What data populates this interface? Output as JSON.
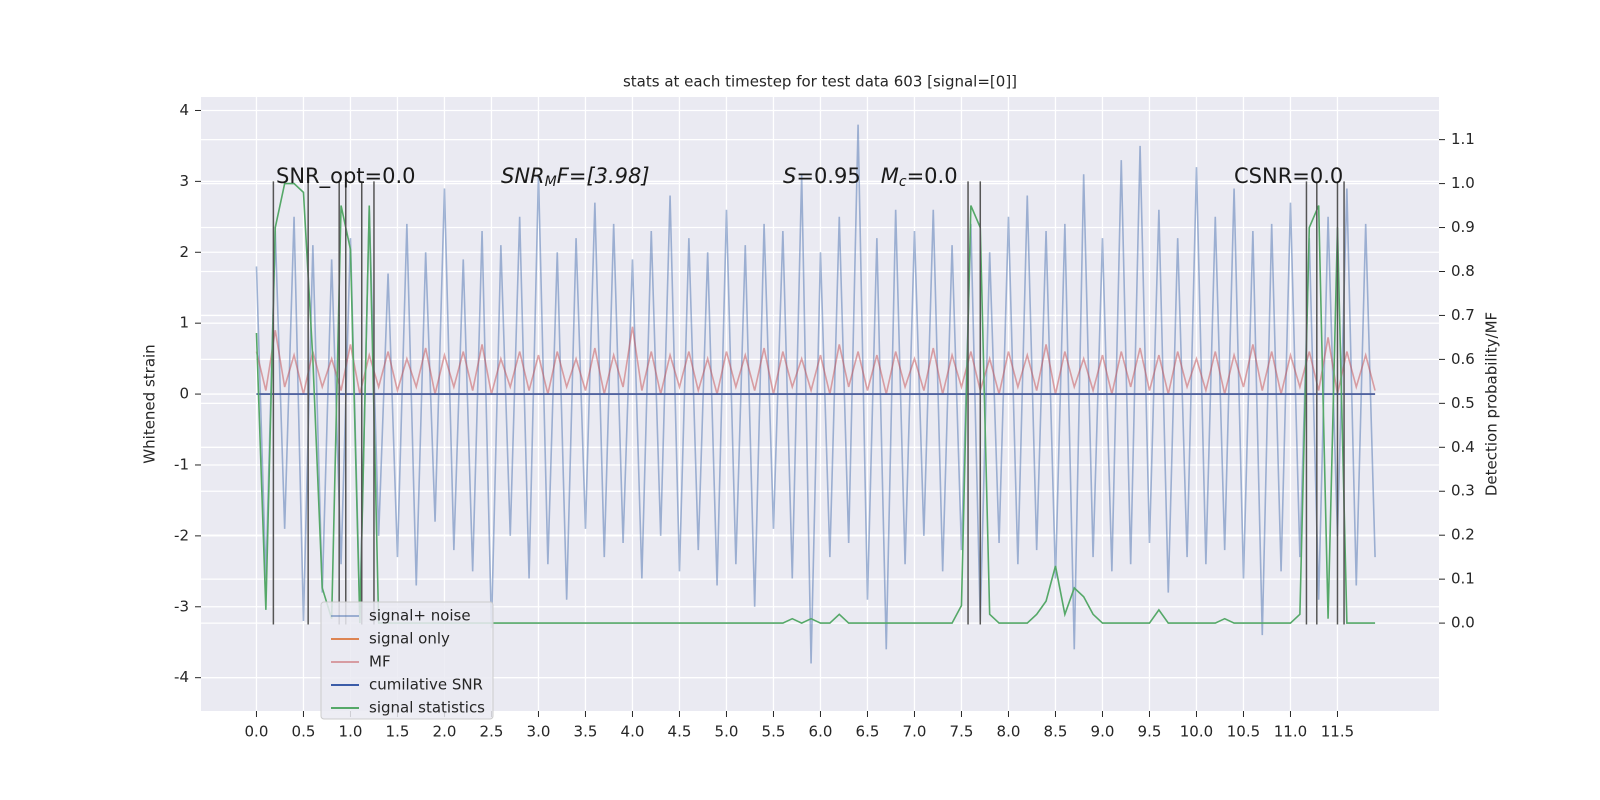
{
  "chart_data": {
    "type": "line",
    "title": "stats at each timestep for test data 603 [signal=[0]]",
    "ylabel": "Whitened strain",
    "y2label": "Detection probability/MF",
    "annotations": [
      [
        "SNR_opt=0.0"
      ],
      [
        "SNR",
        "M",
        "F=[3.98]"
      ],
      [
        "S",
        "=0.95   ",
        "M",
        "c",
        "=0.0"
      ],
      [
        "CSNR=0.0"
      ]
    ],
    "xlim": [
      -0.59,
      12.58
    ],
    "xticks": [
      {
        "value": 0,
        "label": "0.0"
      },
      0.5,
      {
        "value": 1,
        "label": "1.0"
      },
      1.5,
      {
        "value": 2,
        "label": "2.0"
      },
      2.5,
      {
        "value": 3,
        "label": "3.0"
      },
      3.5,
      {
        "value": 4,
        "label": "4.0"
      },
      4.5,
      {
        "value": 5,
        "label": "5.0"
      },
      5.5,
      {
        "value": 6,
        "label": "6.0"
      },
      6.5,
      {
        "value": 7,
        "label": "7.0"
      },
      7.5,
      {
        "value": 8,
        "label": "8.0"
      },
      8.5,
      {
        "value": 9,
        "label": "9.0"
      },
      9.5,
      {
        "value": 10,
        "label": "10.0"
      },
      10.5,
      {
        "value": 11,
        "label": "11.0"
      },
      11.5
    ],
    "ylim": [
      -4.47,
      4.19
    ],
    "yticks": [
      -4,
      -3,
      -2,
      -1,
      0,
      1,
      2,
      3,
      4
    ],
    "y2lim": [
      -0.2,
      1.197
    ],
    "y2ticks": [
      {
        "value": 0,
        "label": "0.0"
      },
      0.1,
      0.2,
      0.3,
      0.4,
      0.5,
      0.6,
      0.7,
      0.8,
      0.9,
      {
        "value": 1,
        "label": "1.0"
      },
      1.1
    ],
    "grid": true,
    "legend": "lower left",
    "vlines": [
      0.18,
      0.55,
      0.88,
      0.95,
      1.12,
      1.25,
      7.57,
      7.7,
      11.17,
      11.28,
      11.5,
      11.57
    ],
    "vline_span": [
      -3.25,
      3.0
    ],
    "vline_color": "#555555",
    "x": [
      0.0,
      0.1,
      0.2,
      0.3,
      0.4,
      0.5,
      0.6,
      0.7,
      0.8,
      0.9,
      1.0,
      1.1,
      1.2,
      1.3,
      1.4,
      1.5,
      1.6,
      1.7,
      1.8,
      1.9,
      2.0,
      2.1,
      2.2,
      2.3,
      2.4,
      2.5,
      2.6,
      2.7,
      2.8,
      2.9,
      3.0,
      3.1,
      3.2,
      3.3,
      3.4,
      3.5,
      3.6,
      3.7,
      3.8,
      3.9,
      4.0,
      4.1,
      4.2,
      4.3,
      4.4,
      4.5,
      4.6,
      4.7,
      4.8,
      4.9,
      5.0,
      5.1,
      5.2,
      5.3,
      5.4,
      5.5,
      5.6,
      5.7,
      5.8,
      5.9,
      6.0,
      6.1,
      6.2,
      6.3,
      6.4,
      6.5,
      6.6,
      6.7,
      6.8,
      6.9,
      7.0,
      7.1,
      7.2,
      7.3,
      7.4,
      7.5,
      7.6,
      7.7,
      7.8,
      7.9,
      8.0,
      8.1,
      8.2,
      8.3,
      8.4,
      8.5,
      8.6,
      8.7,
      8.8,
      8.9,
      9.0,
      9.1,
      9.2,
      9.3,
      9.4,
      9.5,
      9.6,
      9.7,
      9.8,
      9.9,
      10.0,
      10.1,
      10.2,
      10.3,
      10.4,
      10.5,
      10.6,
      10.7,
      10.8,
      10.9,
      11.0,
      11.1,
      11.2,
      11.3,
      11.4,
      11.5,
      11.6,
      11.7,
      11.8,
      11.9
    ],
    "series": [
      {
        "name": "signal+ noise",
        "color": "#4c72b0",
        "alpha": 0.5,
        "values": [
          1.8,
          -2.6,
          2.3,
          -1.9,
          2.5,
          -3.2,
          2.1,
          -2.8,
          1.9,
          -2.4,
          2.2,
          -3.1,
          2.6,
          -2.0,
          1.7,
          -2.3,
          2.4,
          -2.7,
          2.0,
          -1.8,
          2.9,
          -2.2,
          1.9,
          -2.5,
          2.3,
          -3.3,
          2.1,
          -2.0,
          2.5,
          -2.6,
          3.1,
          -2.4,
          2.0,
          -2.9,
          2.2,
          -1.9,
          2.7,
          -2.3,
          2.4,
          -2.1,
          1.9,
          -2.6,
          2.3,
          -2.0,
          2.8,
          -2.5,
          2.2,
          -2.2,
          2.0,
          -2.7,
          2.6,
          -2.4,
          2.1,
          -3.0,
          2.4,
          -1.9,
          2.3,
          -2.6,
          3.1,
          -3.8,
          2.0,
          -2.3,
          2.5,
          -2.1,
          3.8,
          -2.9,
          2.2,
          -3.6,
          2.6,
          -2.4,
          2.3,
          -2.0,
          2.6,
          -2.5,
          2.1,
          -2.2,
          2.4,
          -3.2,
          2.0,
          -2.1,
          2.5,
          -2.4,
          2.8,
          -2.2,
          2.3,
          -2.6,
          2.4,
          -3.6,
          3.1,
          -2.3,
          2.2,
          -2.5,
          3.3,
          -2.4,
          3.5,
          -2.1,
          2.6,
          -2.8,
          2.2,
          -2.3,
          3.2,
          -2.4,
          2.5,
          -2.2,
          2.9,
          -2.6,
          2.3,
          -3.4,
          2.4,
          -2.5,
          2.7,
          -2.3,
          2.2,
          -2.9,
          2.5,
          -2.0,
          2.9,
          -2.7,
          2.4,
          -2.3
        ]
      },
      {
        "name": "signal only",
        "color": "#dd8452",
        "alpha": 1,
        "values": [
          0,
          0,
          0,
          0,
          0,
          0,
          0,
          0,
          0,
          0,
          0,
          0,
          0,
          0,
          0,
          0,
          0,
          0,
          0,
          0,
          0,
          0,
          0,
          0,
          0,
          0,
          0,
          0,
          0,
          0,
          0,
          0,
          0,
          0,
          0,
          0,
          0,
          0,
          0,
          0,
          0,
          0,
          0,
          0,
          0,
          0,
          0,
          0,
          0,
          0,
          0,
          0,
          0,
          0,
          0,
          0,
          0,
          0,
          0,
          0,
          0,
          0,
          0,
          0,
          0,
          0,
          0,
          0,
          0,
          0,
          0,
          0,
          0,
          0,
          0,
          0,
          0,
          0,
          0,
          0,
          0,
          0,
          0,
          0,
          0,
          0,
          0,
          0,
          0,
          0,
          0,
          0,
          0,
          0,
          0,
          0,
          0,
          0,
          0,
          0,
          0,
          0,
          0,
          0,
          0,
          0,
          0,
          0,
          0,
          0,
          0,
          0,
          0,
          0,
          0,
          0,
          0,
          0,
          0,
          0
        ]
      },
      {
        "name": "MF",
        "color": "#c44e52",
        "alpha": 0.5,
        "values": [
          0.6,
          0.05,
          0.9,
          0.1,
          0.55,
          0.0,
          0.6,
          0.1,
          0.5,
          0.05,
          0.7,
          0.0,
          0.55,
          0.1,
          0.6,
          0.05,
          0.5,
          0.1,
          0.65,
          0.0,
          0.55,
          0.1,
          0.6,
          0.05,
          0.7,
          0.0,
          0.5,
          0.1,
          0.6,
          0.05,
          0.55,
          0.0,
          0.6,
          0.1,
          0.5,
          0.05,
          0.65,
          0.0,
          0.55,
          0.1,
          0.95,
          0.05,
          0.6,
          0.0,
          0.55,
          0.1,
          0.6,
          0.05,
          0.5,
          0.0,
          0.6,
          0.1,
          0.55,
          0.05,
          0.65,
          0.0,
          0.6,
          0.1,
          0.5,
          0.05,
          0.55,
          0.0,
          0.7,
          0.1,
          0.6,
          0.05,
          0.55,
          0.0,
          0.6,
          0.1,
          0.5,
          0.05,
          0.65,
          0.0,
          0.55,
          0.1,
          0.6,
          0.05,
          0.5,
          0.0,
          0.6,
          0.1,
          0.55,
          0.05,
          0.7,
          0.0,
          0.6,
          0.1,
          0.5,
          0.05,
          0.55,
          0.0,
          0.6,
          0.1,
          0.65,
          0.05,
          0.55,
          0.0,
          0.6,
          0.1,
          0.5,
          0.05,
          0.6,
          0.0,
          0.55,
          0.1,
          0.7,
          0.05,
          0.6,
          0.0,
          0.55,
          0.1,
          0.6,
          0.05,
          0.8,
          0.0,
          0.6,
          0.1,
          0.55,
          0.05
        ]
      },
      {
        "name": "cumilative SNR",
        "color": "#3b5ca8",
        "alpha": 1,
        "values": [
          0,
          0,
          0,
          0,
          0,
          0,
          0,
          0,
          0,
          0,
          0,
          0,
          0,
          0,
          0,
          0,
          0,
          0,
          0,
          0,
          0,
          0,
          0,
          0,
          0,
          0,
          0,
          0,
          0,
          0,
          0,
          0,
          0,
          0,
          0,
          0,
          0,
          0,
          0,
          0,
          0,
          0,
          0,
          0,
          0,
          0,
          0,
          0,
          0,
          0,
          0,
          0,
          0,
          0,
          0,
          0,
          0,
          0,
          0,
          0,
          0,
          0,
          0,
          0,
          0,
          0,
          0,
          0,
          0,
          0,
          0,
          0,
          0,
          0,
          0,
          0,
          0,
          0,
          0,
          0,
          0,
          0,
          0,
          0,
          0,
          0,
          0,
          0,
          0,
          0,
          0,
          0,
          0,
          0,
          0,
          0,
          0,
          0,
          0,
          0,
          0,
          0,
          0,
          0,
          0,
          0,
          0,
          0,
          0,
          0,
          0,
          0,
          0,
          0,
          0,
          0,
          0,
          0,
          0,
          0
        ]
      },
      {
        "name": "signal statistics",
        "color": "#55a868",
        "alpha": 1,
        "axis": "y2",
        "values": [
          0.66,
          0.03,
          0.9,
          1.0,
          1.0,
          0.98,
          0.6,
          0.08,
          0.01,
          0.95,
          0.85,
          0.0,
          0.95,
          0.0,
          0,
          0,
          0,
          0,
          0,
          0,
          0,
          0,
          0,
          0,
          0,
          0,
          0,
          0,
          0,
          0,
          0,
          0,
          0,
          0,
          0,
          0,
          0,
          0,
          0,
          0,
          0,
          0,
          0,
          0,
          0,
          0,
          0,
          0,
          0,
          0,
          0,
          0,
          0,
          0,
          0,
          0,
          0,
          0.01,
          0.0,
          0.01,
          0.0,
          0.0,
          0.02,
          0.0,
          0,
          0,
          0,
          0,
          0,
          0,
          0,
          0,
          0,
          0,
          0,
          0.04,
          0.95,
          0.9,
          0.02,
          0,
          0,
          0,
          0,
          0.02,
          0.05,
          0.13,
          0.02,
          0.08,
          0.06,
          0.02,
          0,
          0,
          0,
          0,
          0,
          0,
          0.03,
          0,
          0,
          0,
          0,
          0,
          0,
          0.01,
          0,
          0,
          0,
          0,
          0,
          0,
          0,
          0.02,
          0.9,
          0.95,
          0.01,
          0.9,
          0,
          0,
          0,
          0
        ]
      }
    ]
  }
}
